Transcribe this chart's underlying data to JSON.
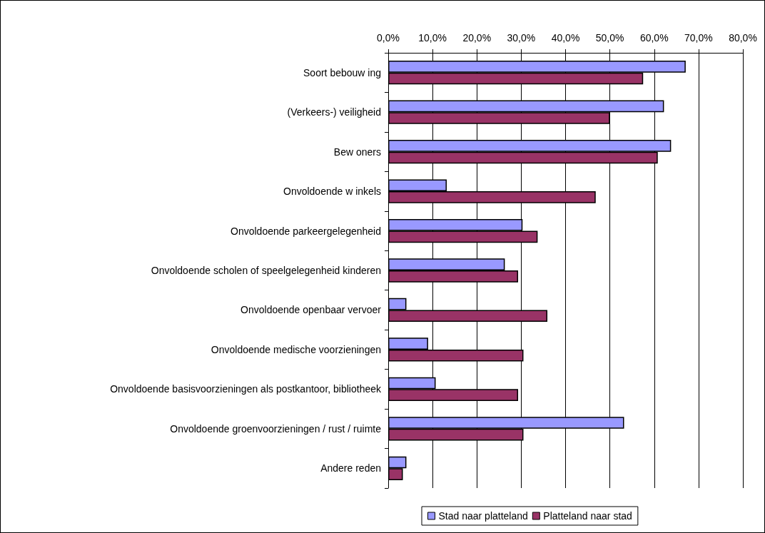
{
  "chart_data": {
    "type": "bar",
    "orientation": "horizontal",
    "categories": [
      "Soort bebouw ing",
      "(Verkeers-) veiligheid",
      "Bew oners",
      "Onvoldoende w inkels",
      "Onvoldoende parkeergelegenheid",
      "Onvoldoende scholen of speelgelegenheid kinderen",
      "Onvoldoende openbaar vervoer",
      "Onvoldoende medische voorzieningen",
      "Onvoldoende basisvoorzieningen als postkantoor, bibliotheek",
      "Onvoldoende groenvoorzieningen / rust / ruimte",
      "Andere reden"
    ],
    "series": [
      {
        "name": "Stad naar platteland",
        "color": "#9999ff",
        "values": [
          67.1,
          62.2,
          63.8,
          13.2,
          30.3,
          26.3,
          4.1,
          9.0,
          10.7,
          53.2,
          4.1
        ]
      },
      {
        "name": "Platteland naar stad",
        "color": "#993366",
        "values": [
          57.5,
          50.0,
          60.8,
          46.8,
          33.7,
          29.3,
          35.9,
          30.5,
          29.3,
          30.5,
          3.3
        ]
      }
    ],
    "xlim": [
      0,
      80
    ],
    "xticks": [
      {
        "value": 0,
        "label": "0,0%"
      },
      {
        "value": 10,
        "label": "10,0%"
      },
      {
        "value": 20,
        "label": "20,0%"
      },
      {
        "value": 30,
        "label": "30,0%"
      },
      {
        "value": 40,
        "label": "40,0%"
      },
      {
        "value": 50,
        "label": "50,0%"
      },
      {
        "value": 60,
        "label": "60,0%"
      },
      {
        "value": 70,
        "label": "70,0%"
      },
      {
        "value": 80,
        "label": "80,0%"
      }
    ],
    "grid": "x",
    "legend": "bottom"
  }
}
